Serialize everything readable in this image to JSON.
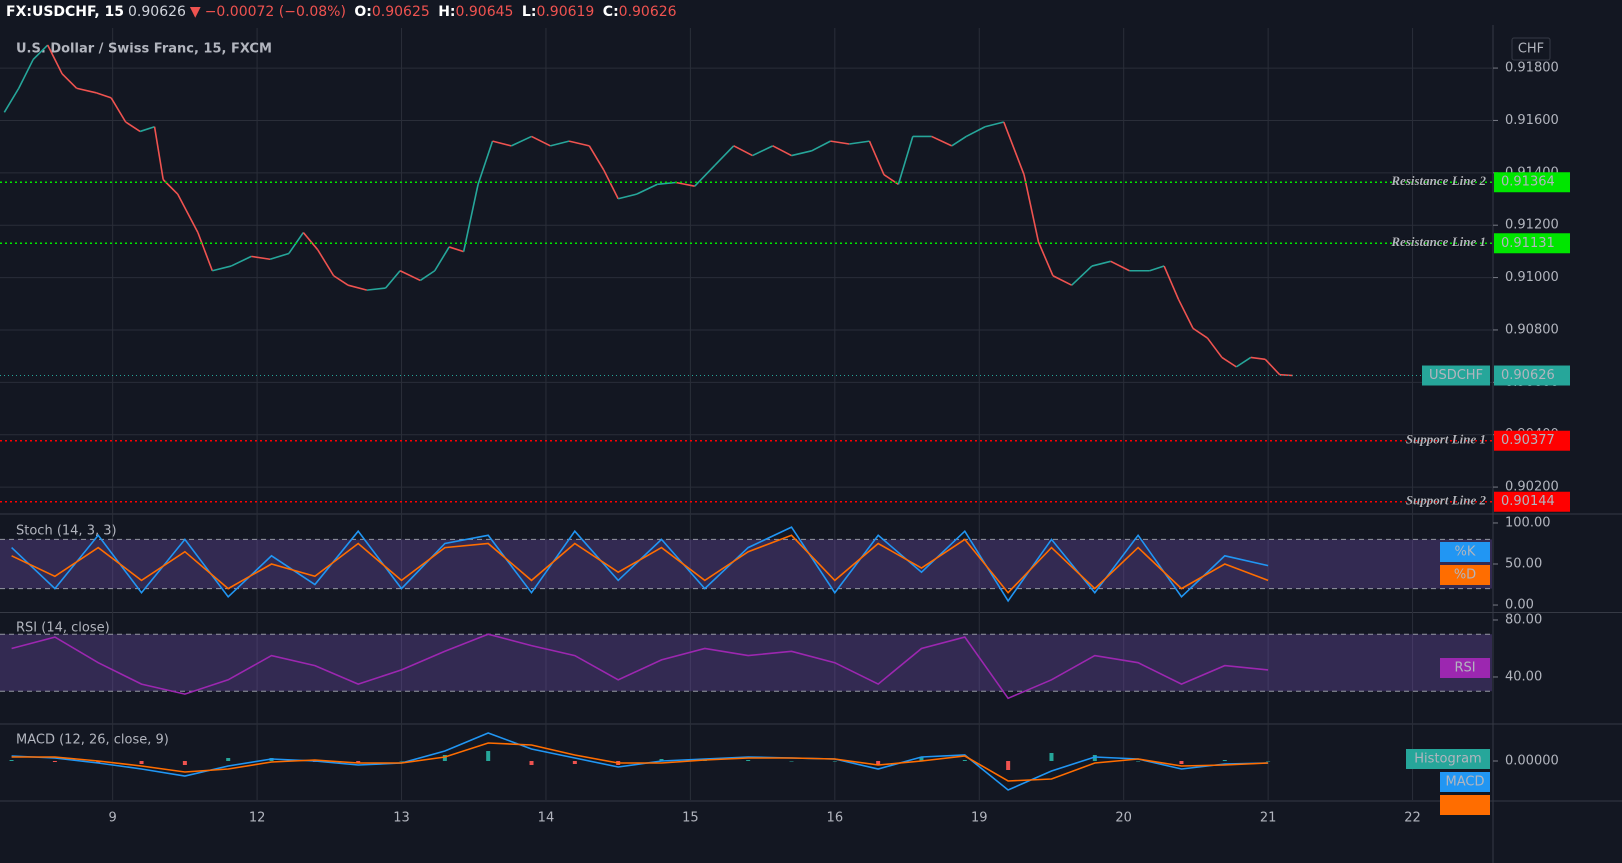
{
  "header": {
    "symbol": "FX:USDCHF, 15",
    "last": 0.90626,
    "arrow": "▼",
    "change": "−0.00072 (−0.08%)",
    "ohlc": [
      {
        "label": "O:",
        "value": 0.90625
      },
      {
        "label": "H:",
        "value": 0.90645
      },
      {
        "label": "L:",
        "value": 0.90619
      },
      {
        "label": "C:",
        "value": 0.90626
      }
    ]
  },
  "chart_data": [
    {
      "type": "line",
      "title": "U.S. Dollar / Swiss Franc, 15, FXCM",
      "currency": "CHF",
      "x": [
        0.25,
        0.35,
        0.45,
        0.55,
        0.65,
        0.75,
        0.89,
        0.99,
        1.09,
        1.19,
        1.29,
        1.35,
        1.45,
        1.59,
        1.69,
        1.82,
        1.96,
        2.09,
        2.22,
        2.32,
        2.42,
        2.53,
        2.63,
        2.76,
        2.89,
        2.99,
        3.13,
        3.23,
        3.33,
        3.43,
        3.53,
        3.63,
        3.76,
        3.9,
        4.03,
        4.16,
        4.3,
        4.4,
        4.5,
        4.63,
        4.77,
        4.9,
        5.03,
        5.17,
        5.3,
        5.43,
        5.57,
        5.7,
        5.84,
        5.97,
        6.1,
        6.24,
        6.34,
        6.44,
        6.54,
        6.67,
        6.81,
        6.91,
        7.04,
        7.17,
        7.31,
        7.41,
        7.51,
        7.64,
        7.78,
        7.91,
        8.04,
        8.18,
        8.28,
        8.38,
        8.48,
        8.58,
        8.68,
        8.78,
        8.88,
        8.98,
        9.08,
        9.17
      ],
      "series": [
        {
          "name": "USDCHF",
          "up_color": "#26a69a",
          "down_color": "#ef5350",
          "last": 0.90626,
          "values": [
            0.91631,
            0.91723,
            0.91833,
            0.91888,
            0.91778,
            0.91723,
            0.91705,
            0.91686,
            0.91594,
            0.91558,
            0.91576,
            0.91374,
            0.91319,
            0.91172,
            0.91026,
            0.91044,
            0.91081,
            0.9107,
            0.91092,
            0.91172,
            0.91106,
            0.91007,
            0.90971,
            0.90952,
            0.9096,
            0.91026,
            0.90989,
            0.91026,
            0.91117,
            0.91099,
            0.91356,
            0.91521,
            0.91503,
            0.91539,
            0.91503,
            0.91521,
            0.91503,
            0.91411,
            0.91301,
            0.91319,
            0.91356,
            0.91363,
            0.91349,
            0.91429,
            0.91503,
            0.91466,
            0.91503,
            0.91466,
            0.91484,
            0.91521,
            0.9151,
            0.91521,
            0.91393,
            0.91356,
            0.91539,
            0.91539,
            0.91503,
            0.91539,
            0.91576,
            0.91594,
            0.91393,
            0.91136,
            0.91007,
            0.90971,
            0.91044,
            0.91062,
            0.91026,
            0.91026,
            0.91044,
            0.90916,
            0.90806,
            0.90769,
            0.90695,
            0.90659,
            0.90695,
            0.90688,
            0.90629,
            0.90626
          ]
        }
      ],
      "levels": [
        {
          "name": "Resistance Line 2",
          "value": 0.91364,
          "color": "#00e600",
          "badge_text": "#000000"
        },
        {
          "name": "Resistance Line 1",
          "value": 0.91131,
          "color": "#00e600",
          "badge_text": "#000000"
        },
        {
          "name": "Support Line 1",
          "value": 0.90377,
          "color": "#ff0000",
          "badge_text": "#ffffff"
        },
        {
          "name": "Support Line 2",
          "value": 0.90144,
          "color": "#ff0000",
          "badge_text": "#ffffff"
        }
      ],
      "xlim": [
        0.22,
        10.55
      ],
      "xticks": [
        {
          "value": 1,
          "label": "9"
        },
        {
          "value": 2,
          "label": "12"
        },
        {
          "value": 3,
          "label": "13"
        },
        {
          "value": 4,
          "label": "14"
        },
        {
          "value": 5,
          "label": "15"
        },
        {
          "value": 6,
          "label": "16"
        },
        {
          "value": 7,
          "label": "19"
        },
        {
          "value": 8,
          "label": "20"
        },
        {
          "value": 9,
          "label": "21"
        },
        {
          "value": 10,
          "label": "22"
        }
      ],
      "ylim": [
        0.90101,
        0.91953
      ],
      "yticks": [
        {
          "value": 0.918,
          "label": "0.91800"
        },
        {
          "value": 0.916,
          "label": "0.91600"
        },
        {
          "value": 0.914,
          "label": "0.91400"
        },
        {
          "value": 0.912,
          "label": "0.91200"
        },
        {
          "value": 0.91,
          "label": "0.91000"
        },
        {
          "value": 0.908,
          "label": "0.90800"
        },
        {
          "value": 0.906,
          "label": "0.90600"
        },
        {
          "value": 0.904,
          "label": "0.90400"
        },
        {
          "value": 0.902,
          "label": "0.90200"
        }
      ],
      "grid": true
    },
    {
      "type": "line",
      "title": "Stoch (14, 3, 3)",
      "x": [
        0.3,
        0.6,
        0.9,
        1.2,
        1.5,
        1.8,
        2.1,
        2.4,
        2.7,
        3.0,
        3.3,
        3.6,
        3.9,
        4.2,
        4.5,
        4.8,
        5.1,
        5.4,
        5.7,
        6.0,
        6.3,
        6.6,
        6.9,
        7.2,
        7.5,
        7.8,
        8.1,
        8.4,
        8.7,
        9.0
      ],
      "series": [
        {
          "name": "%K",
          "color": "#2196f3",
          "values": [
            70,
            20,
            85,
            15,
            80,
            10,
            60,
            25,
            90,
            20,
            75,
            85,
            15,
            90,
            30,
            80,
            20,
            70,
            95,
            15,
            85,
            40,
            90,
            5,
            80,
            15,
            85,
            10,
            60,
            48
          ]
        },
        {
          "name": "%D",
          "color": "#ff6d00",
          "values": [
            60,
            35,
            70,
            30,
            65,
            20,
            50,
            35,
            75,
            30,
            70,
            75,
            30,
            75,
            40,
            70,
            30,
            65,
            85,
            30,
            75,
            45,
            80,
            15,
            70,
            20,
            70,
            20,
            50,
            30
          ]
        }
      ],
      "bands": [
        20,
        80
      ],
      "band_color": "#7e57c2",
      "ylim": [
        -8.5,
        108.5
      ],
      "yticks": [
        {
          "value": 100,
          "label": "100.00"
        },
        {
          "value": 50,
          "label": "50.00"
        },
        {
          "value": 0,
          "label": "0.00"
        }
      ]
    },
    {
      "type": "line",
      "title": "RSI (14, close)",
      "x": [
        0.3,
        0.6,
        0.9,
        1.2,
        1.5,
        1.8,
        2.1,
        2.4,
        2.7,
        3.0,
        3.3,
        3.6,
        3.9,
        4.2,
        4.5,
        4.8,
        5.1,
        5.4,
        5.7,
        6.0,
        6.3,
        6.6,
        6.9,
        7.2,
        7.5,
        7.8,
        8.1,
        8.4,
        8.7,
        9.0
      ],
      "series": [
        {
          "name": "RSI",
          "color": "#9c27b0",
          "values": [
            60,
            68,
            50,
            35,
            28,
            38,
            55,
            48,
            35,
            45,
            58,
            70,
            62,
            55,
            38,
            52,
            60,
            55,
            58,
            50,
            35,
            60,
            68,
            25,
            38,
            55,
            50,
            35,
            48,
            45
          ]
        }
      ],
      "bands": [
        30,
        70
      ],
      "band_color": "#7e57c2",
      "ylim": [
        7.7,
        84.9
      ],
      "yticks": [
        {
          "value": 80,
          "label": "80.00"
        },
        {
          "value": 40,
          "label": "40.00"
        }
      ]
    },
    {
      "type": "macd",
      "title": "MACD (12, 26, close, 9)",
      "x": [
        0.3,
        0.6,
        0.9,
        1.2,
        1.5,
        1.8,
        2.1,
        2.4,
        2.7,
        3.0,
        3.3,
        3.6,
        3.9,
        4.2,
        4.5,
        4.8,
        5.1,
        5.4,
        5.7,
        6.0,
        6.3,
        6.6,
        6.9,
        7.2,
        7.5,
        7.8,
        8.1,
        8.4,
        8.7,
        9.0
      ],
      "series": [
        {
          "name": "Histogram",
          "color": "#26a69a",
          "down_color": "#ef5350",
          "kind": "bar",
          "values": [
            1e-05,
            -1e-05,
            -2e-05,
            -3e-05,
            -4e-05,
            3e-05,
            3e-05,
            -1e-05,
            -2e-05,
            0,
            6e-05,
            0.0001,
            -4e-05,
            -3e-05,
            -4e-05,
            2e-05,
            1e-05,
            1e-05,
            0,
            0,
            -4e-05,
            4e-05,
            1e-05,
            -9e-05,
            8e-05,
            6e-05,
            0,
            -3e-05,
            1e-05,
            0
          ]
        },
        {
          "name": "MACD",
          "color": "#2196f3",
          "kind": "line",
          "values": [
            5e-05,
            3e-05,
            -2e-05,
            -8e-05,
            -0.00015,
            -5e-05,
            2e-05,
            0,
            -4e-05,
            -2e-05,
            0.0001,
            0.00028,
            0.00012,
            3e-05,
            -6e-05,
            0,
            2e-05,
            4e-05,
            3e-05,
            2e-05,
            -8e-05,
            4e-05,
            6e-05,
            -0.00029,
            -0.0001,
            4e-05,
            2e-05,
            -8e-05,
            -3e-05,
            -2e-05
          ]
        },
        {
          "color": "#ff6d00",
          "kind": "line",
          "values": [
            4e-05,
            4e-05,
            0,
            -5e-05,
            -0.00011,
            -8e-05,
            -1e-05,
            1e-05,
            -2e-05,
            -2e-05,
            4e-05,
            0.00018,
            0.00016,
            6e-05,
            -2e-05,
            -2e-05,
            1e-05,
            3e-05,
            3e-05,
            2e-05,
            -4e-05,
            0,
            5e-05,
            -0.0002,
            -0.00018,
            -2e-05,
            2e-05,
            -5e-05,
            -4e-05,
            -2e-05
          ]
        }
      ],
      "ylim": [
        -0.00039,
        0.00036
      ],
      "yticks": [
        {
          "value": 0,
          "label": "0.00000"
        }
      ]
    }
  ]
}
